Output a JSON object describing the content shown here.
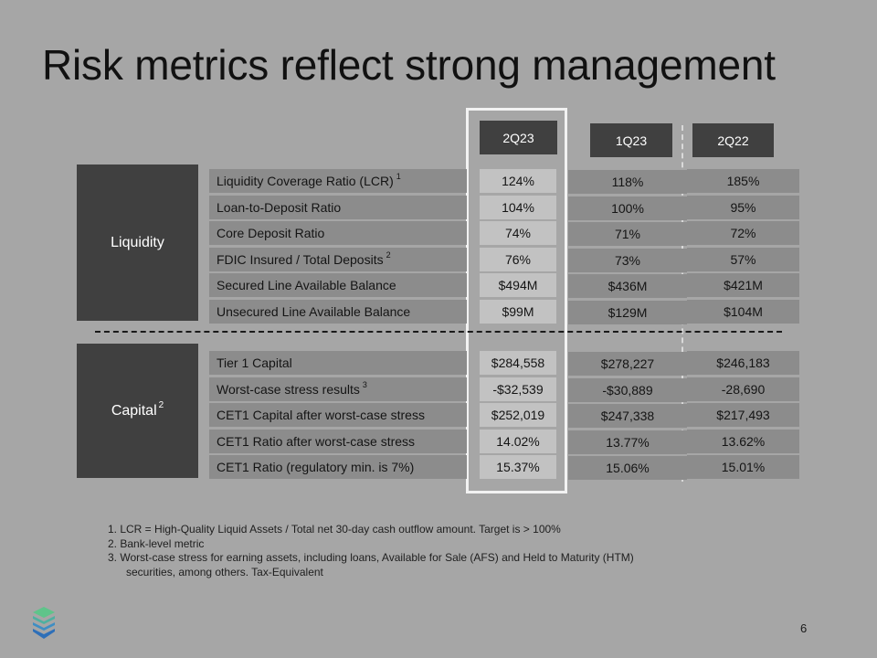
{
  "title": "Risk metrics reflect strong management",
  "columns": [
    "2Q23",
    "1Q23",
    "2Q22"
  ],
  "sections": {
    "liquidity": {
      "label": "Liquidity",
      "sup": ""
    },
    "capital": {
      "label": "Capital",
      "sup": "2"
    }
  },
  "liquidity_rows": [
    {
      "label": "Liquidity Coverage Ratio (LCR)",
      "sup": "1",
      "values": [
        "124%",
        "118%",
        "185%"
      ]
    },
    {
      "label": "Loan-to-Deposit Ratio",
      "sup": "",
      "values": [
        "104%",
        "100%",
        "95%"
      ]
    },
    {
      "label": "Core Deposit Ratio",
      "sup": "",
      "values": [
        "74%",
        "71%",
        "72%"
      ]
    },
    {
      "label": "FDIC Insured / Total Deposits",
      "sup": "2",
      "values": [
        "76%",
        "73%",
        "57%"
      ]
    },
    {
      "label": "Secured Line Available Balance",
      "sup": "",
      "values": [
        "$494M",
        "$436M",
        "$421M"
      ]
    },
    {
      "label": "Unsecured Line Available Balance",
      "sup": "",
      "values": [
        "$99M",
        "$129M",
        "$104M"
      ]
    }
  ],
  "capital_rows": [
    {
      "label": "Tier 1 Capital",
      "sup": "",
      "values": [
        "$284,558",
        "$278,227",
        "$246,183"
      ]
    },
    {
      "label": "Worst-case stress results",
      "sup": "3",
      "values": [
        "-$32,539",
        "-$30,889",
        "-28,690"
      ]
    },
    {
      "label": "CET1 Capital after worst-case stress",
      "sup": "",
      "values": [
        "$252,019",
        "$247,338",
        "$217,493"
      ]
    },
    {
      "label": "CET1 Ratio after worst-case stress",
      "sup": "",
      "values": [
        "14.02%",
        "13.77%",
        "13.62%"
      ]
    },
    {
      "label": "CET1 Ratio (regulatory min. is 7%)",
      "sup": "",
      "values": [
        "15.37%",
        "15.06%",
        "15.01%"
      ]
    }
  ],
  "footnotes": [
    "1.  LCR = High-Quality Liquid Assets / Total net 30-day cash outflow amount.  Target is > 100%",
    "2.  Bank-level metric",
    "3.  Worst-case stress for earning assets, including loans, Available for Sale (AFS) and Held to Maturity  (HTM)",
    "      securities, among others. Tax-Equivalent"
  ],
  "page_number": "6",
  "logo_icon": "stacked-layers-logo"
}
